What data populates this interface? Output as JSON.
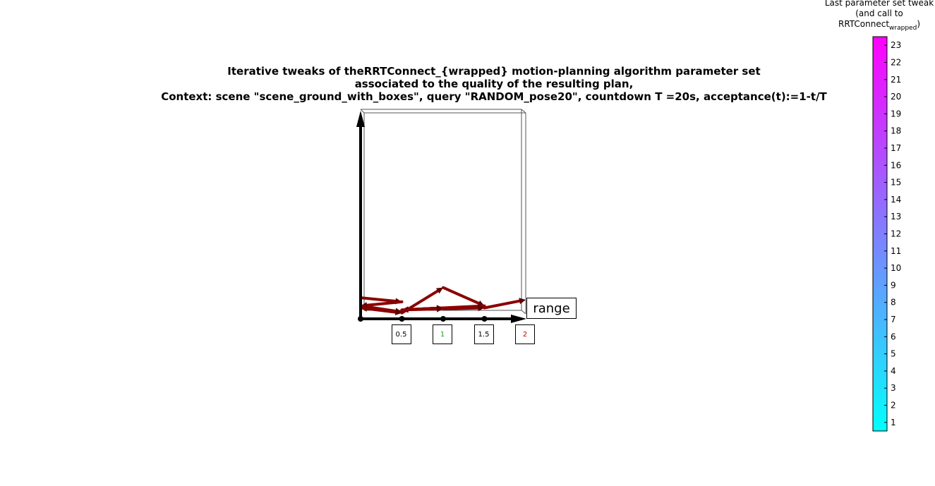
{
  "chart_data": {
    "type": "line",
    "title_lines": [
      "Iterative tweaks of theRRTConnect_{wrapped} motion-planning algorithm parameter set",
      "associated to the quality of the resulting plan,",
      "Context: scene \"scene_ground_with_boxes\", query \"RANDOM_pose20\", countdown T =20s, acceptance(t):=1-t/T"
    ],
    "xlabel": "range",
    "x_ticks": [
      {
        "label": "0.5",
        "value": 0.5,
        "color": "#000000"
      },
      {
        "label": "1",
        "value": 1,
        "color": "#1aa01a"
      },
      {
        "label": "1.5",
        "value": 1.5,
        "color": "#000000"
      },
      {
        "label": "2",
        "value": 2,
        "color": "#cc0000"
      }
    ],
    "xlim": [
      0,
      2
    ],
    "ylim": [
      0,
      1
    ],
    "series": [
      {
        "x": [
          0,
          0.5,
          0,
          0.5,
          0,
          0.5,
          1,
          1.5,
          0.5,
          1,
          0.5,
          1,
          1.5,
          2
        ],
        "y": [
          0.09,
          0.07,
          0.05,
          0.02,
          0.04,
          0.015,
          0.14,
          0.05,
          0.03,
          0.04,
          0.03,
          0.035,
          0.04,
          0.08
        ]
      }
    ],
    "arrow_color": "#8b0000",
    "colorbar": {
      "title_line1": "Last parameter set tweak",
      "title_line2": "(and call to",
      "title_line3_main": "RRTConnect",
      "title_line3_sub": "wrapped",
      "title_line3_end": ")",
      "min": 1,
      "max": 23,
      "ticks": [
        "1",
        "2",
        "3",
        "4",
        "5",
        "6",
        "7",
        "8",
        "9",
        "10",
        "11",
        "12",
        "13",
        "14",
        "15",
        "16",
        "17",
        "18",
        "19",
        "20",
        "21",
        "22",
        "23"
      ],
      "color_low": "#00ffff",
      "color_high": "#ff00ff"
    }
  }
}
